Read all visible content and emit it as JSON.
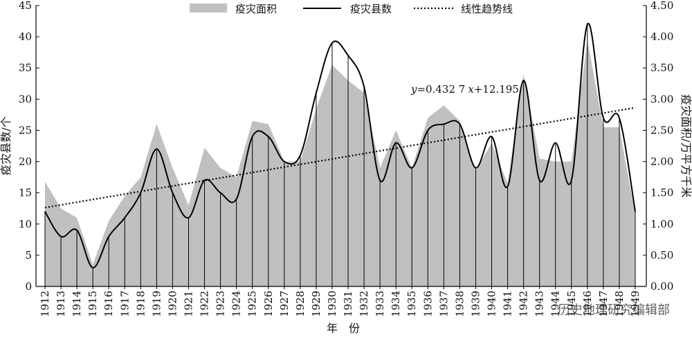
{
  "chart_data": {
    "type": "area",
    "years": [
      "1912",
      "1913",
      "1914",
      "1915",
      "1916",
      "1917",
      "1918",
      "1919",
      "1920",
      "1921",
      "1922",
      "1923",
      "1924",
      "1925",
      "1926",
      "1927",
      "1928",
      "1929",
      "1930",
      "1931",
      "1932",
      "1933",
      "1934",
      "1935",
      "1936",
      "1937",
      "1938",
      "1939",
      "1940",
      "1941",
      "1942",
      "1943",
      "1944",
      "1945",
      "1946",
      "1947",
      "1948",
      "1949"
    ],
    "x_axis_label": "年　份",
    "left_axis": {
      "label": "疫灾县数/个",
      "min": 0,
      "max": 45,
      "ticks": [
        "0",
        "5",
        "10",
        "15",
        "20",
        "25",
        "30",
        "35",
        "40",
        "45"
      ]
    },
    "right_axis": {
      "label": "疫灾面积/万平方千米",
      "min": 0,
      "max": 4.5,
      "ticks": [
        "0.00",
        "0.50",
        "1.00",
        "1.50",
        "2.00",
        "2.50",
        "3.00",
        "3.50",
        "4.00",
        "4.50"
      ]
    },
    "series": [
      {
        "name": "疫灾面积",
        "type": "area",
        "axis": "right",
        "color": "#c0c0c0",
        "values": [
          1.68,
          1.25,
          1.1,
          0.35,
          1.05,
          1.45,
          1.75,
          2.6,
          1.9,
          1.3,
          2.22,
          1.9,
          1.75,
          2.65,
          2.6,
          2.0,
          2.0,
          2.85,
          3.55,
          3.3,
          3.1,
          1.9,
          2.5,
          1.9,
          2.7,
          2.9,
          2.65,
          1.85,
          2.3,
          1.65,
          3.4,
          2.05,
          2.0,
          2.0,
          3.95,
          2.55,
          2.55,
          1.15
        ]
      },
      {
        "name": "疫灾县数",
        "type": "line",
        "axis": "left",
        "color": "#000000",
        "values": [
          12,
          8,
          9,
          3,
          8,
          11,
          15,
          22,
          15,
          11,
          17,
          15,
          14,
          24,
          24,
          20,
          21,
          31,
          39,
          37,
          32,
          17,
          23,
          19,
          25,
          26,
          26,
          19,
          24,
          16,
          33,
          17,
          23,
          17,
          42,
          27,
          27,
          12
        ]
      },
      {
        "name": "线性趋势线",
        "type": "trend",
        "axis": "left",
        "color": "#000000",
        "slope": 0.4327,
        "intercept": 12.195
      }
    ],
    "trend_equation": {
      "y": "y",
      "equals": "=0.432 7",
      "x": "x",
      "rest": "+12.195"
    },
    "legend_position": "top-center"
  },
  "watermark": "历史地理研究编辑部"
}
